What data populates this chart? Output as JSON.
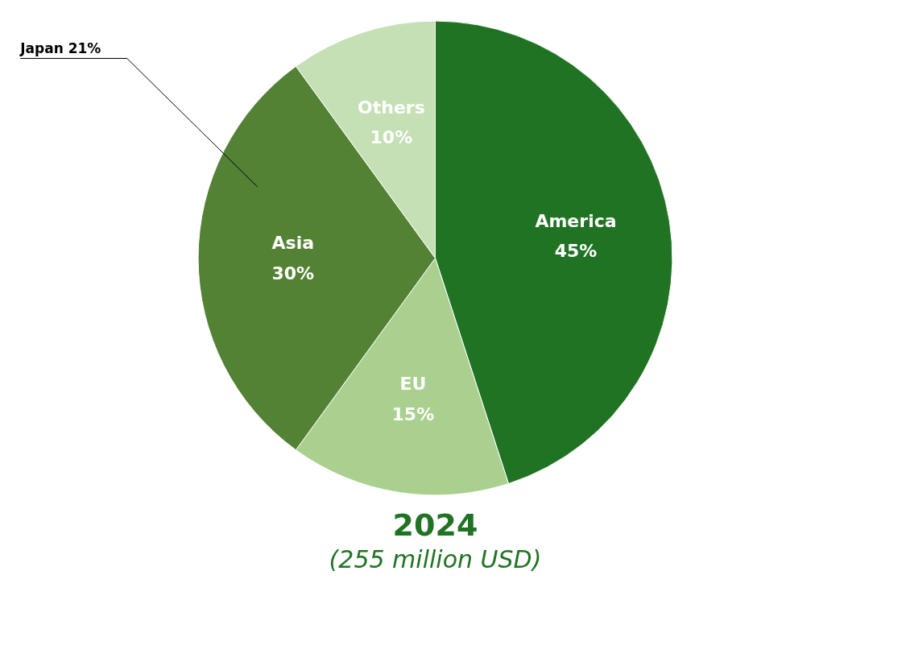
{
  "chart_data": {
    "type": "pie",
    "title": "2024",
    "subtitle": "(255 million USD)",
    "categories": [
      "America",
      "EU",
      "Asia",
      "Others"
    ],
    "values": [
      45,
      15,
      30,
      10
    ],
    "value_labels": [
      "45%",
      "15%",
      "30%",
      "10%"
    ],
    "colors": [
      "#217324",
      "#a9d08e",
      "#548235",
      "#c5e0b4"
    ],
    "annotations": [
      "Japan 21%"
    ]
  }
}
